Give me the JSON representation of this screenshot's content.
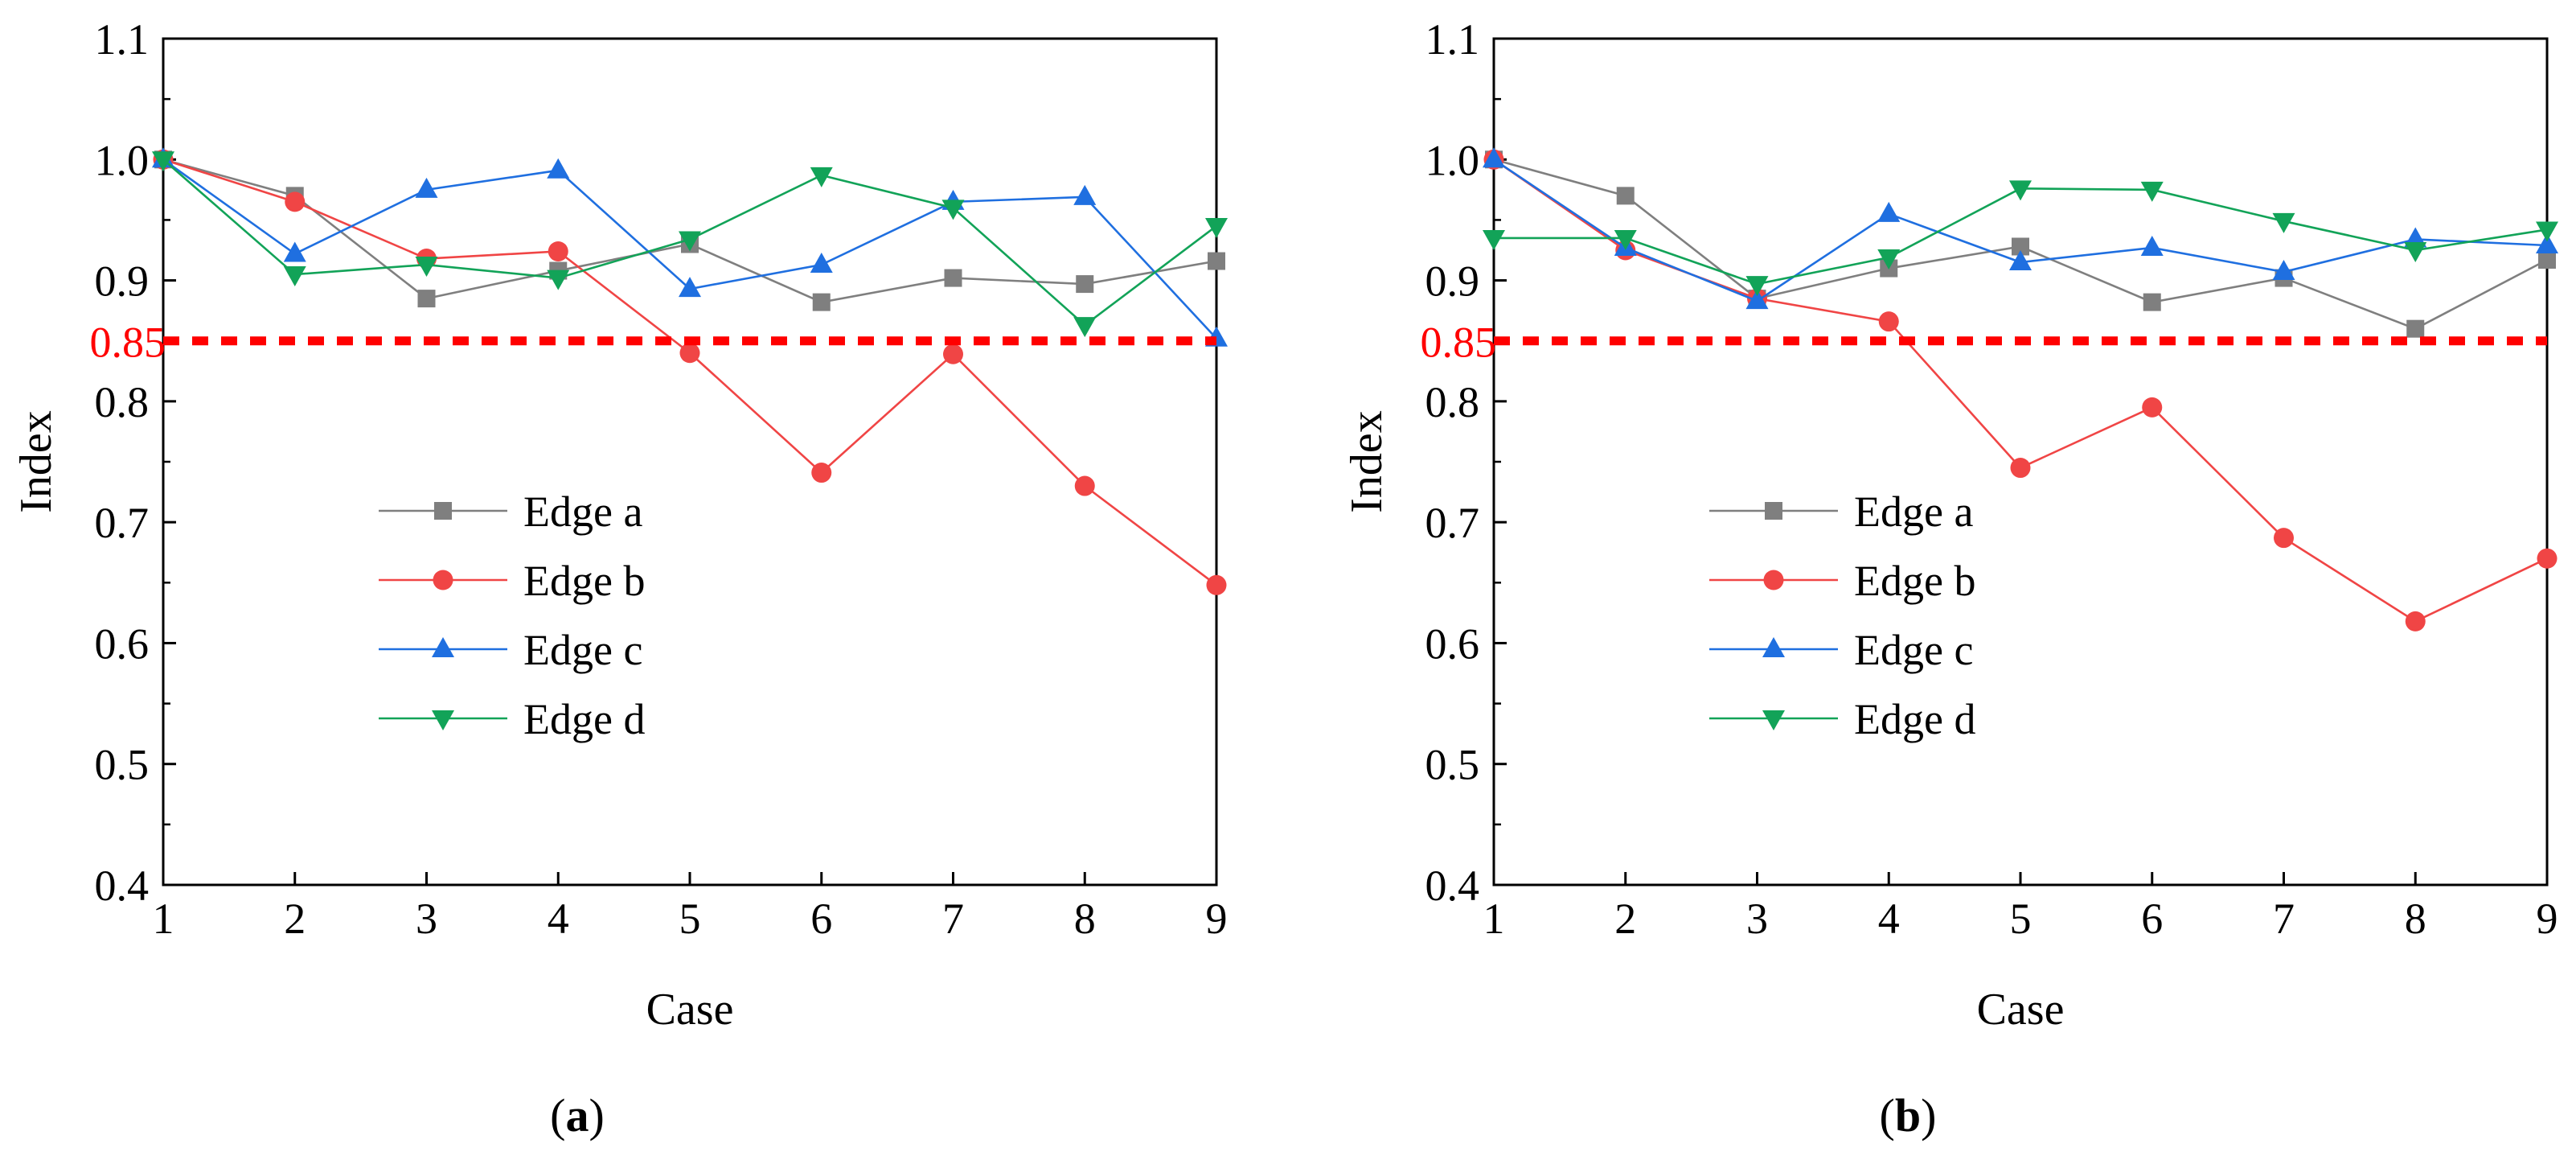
{
  "chart_data": [
    {
      "type": "line",
      "panel_label": "(a)",
      "xlabel": "Case",
      "ylabel": "Index",
      "xlim": [
        1,
        9
      ],
      "ylim": [
        0.4,
        1.1
      ],
      "x": [
        1,
        2,
        3,
        4,
        5,
        6,
        7,
        8,
        9
      ],
      "xticks": [
        "1",
        "2",
        "3",
        "4",
        "5",
        "6",
        "7",
        "8",
        "9"
      ],
      "yticks": [
        "0.4",
        "0.5",
        "0.6",
        "0.7",
        "0.8",
        "0.9",
        "1.0",
        "1.1"
      ],
      "threshold": {
        "value": 0.85,
        "label": "0.85",
        "color": "#ff0000"
      },
      "legend_position": "center-left",
      "series": [
        {
          "name": "Edge a",
          "color": "#7f7f7f",
          "marker": "square",
          "values": [
            1.0,
            0.97,
            0.885,
            0.908,
            0.93,
            0.882,
            0.902,
            0.897,
            0.916
          ]
        },
        {
          "name": "Edge b",
          "color": "#f04545",
          "marker": "circle",
          "values": [
            1.0,
            0.965,
            0.918,
            0.924,
            0.84,
            0.741,
            0.839,
            0.73,
            0.648
          ]
        },
        {
          "name": "Edge c",
          "color": "#1f6fe0",
          "marker": "triangle-up",
          "values": [
            1.0,
            0.922,
            0.975,
            0.991,
            0.893,
            0.913,
            0.965,
            0.969,
            0.852
          ]
        },
        {
          "name": "Edge d",
          "color": "#12a358",
          "marker": "triangle-down",
          "values": [
            1.0,
            0.905,
            0.913,
            0.902,
            0.934,
            0.987,
            0.96,
            0.863,
            0.945
          ]
        }
      ]
    },
    {
      "type": "line",
      "panel_label": "(b)",
      "xlabel": "Case",
      "ylabel": "Index",
      "xlim": [
        1,
        9
      ],
      "ylim": [
        0.4,
        1.1
      ],
      "x": [
        1,
        2,
        3,
        4,
        5,
        6,
        7,
        8,
        9
      ],
      "xticks": [
        "1",
        "2",
        "3",
        "4",
        "5",
        "6",
        "7",
        "8",
        "9"
      ],
      "yticks": [
        "0.4",
        "0.5",
        "0.6",
        "0.7",
        "0.8",
        "0.9",
        "1.0",
        "1.1"
      ],
      "threshold": {
        "value": 0.85,
        "label": "0.85",
        "color": "#ff0000"
      },
      "legend_position": "center-left",
      "series": [
        {
          "name": "Edge a",
          "color": "#7f7f7f",
          "marker": "square",
          "values": [
            1.0,
            0.97,
            0.885,
            0.91,
            0.928,
            0.882,
            0.902,
            0.86,
            0.917
          ]
        },
        {
          "name": "Edge b",
          "color": "#f04545",
          "marker": "circle",
          "values": [
            1.0,
            0.925,
            0.885,
            0.866,
            0.745,
            0.795,
            0.687,
            0.618,
            0.67
          ]
        },
        {
          "name": "Edge c",
          "color": "#1f6fe0",
          "marker": "triangle-up",
          "values": [
            1.0,
            0.927,
            0.883,
            0.955,
            0.915,
            0.927,
            0.907,
            0.934,
            0.929
          ]
        },
        {
          "name": "Edge d",
          "color": "#12a358",
          "marker": "triangle-down",
          "values": [
            0.935,
            0.935,
            0.897,
            0.919,
            0.976,
            0.975,
            0.949,
            0.925,
            0.942
          ]
        }
      ]
    }
  ]
}
